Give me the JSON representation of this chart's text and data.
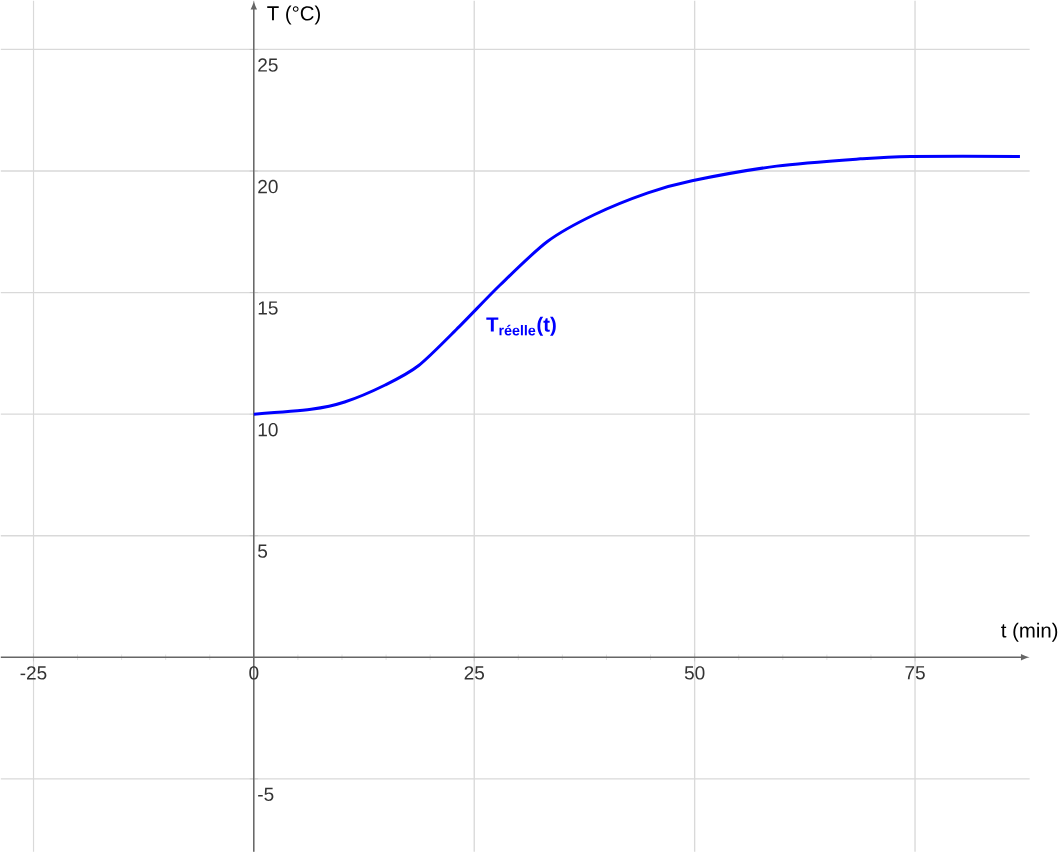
{
  "chart_data": {
    "type": "line",
    "xlabel": "t (min)",
    "ylabel": "T (°C)",
    "xlim": [
      -28.7,
      88
    ],
    "ylim": [
      -8,
      27
    ],
    "xticks": [
      -25,
      0,
      25,
      50,
      75
    ],
    "yticks": [
      -5,
      5,
      10,
      15,
      20,
      25
    ],
    "grid": true,
    "legend": false,
    "marker": "none",
    "line_style": "solid",
    "x": [
      0,
      6.5,
      10.3,
      14.9,
      18.7,
      23.3,
      27.9,
      33.3,
      38.6,
      44.7,
      49.7,
      59.3,
      68.8,
      74.5,
      86.9
    ],
    "series": [
      {
        "name": "T$_{réelle}$(t)",
        "color": "#0000ff",
        "values": [
          10.0,
          10.2,
          10.5,
          11.2,
          12.0,
          13.6,
          15.3,
          17.1,
          18.2,
          19.1,
          19.6,
          20.2,
          20.5,
          20.6,
          20.6
        ]
      }
    ]
  }
}
